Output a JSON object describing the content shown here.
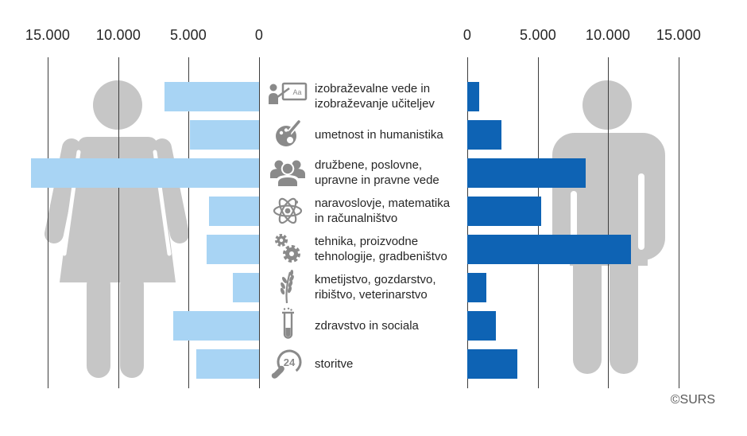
{
  "source": "©SURS",
  "colors": {
    "female_bar": "#A8D4F4",
    "male_bar": "#0E63B4",
    "silhouette": "#C6C6C6",
    "icon": "#8A8A8A",
    "gridline": "#3D3D3D"
  },
  "chart_data": {
    "type": "bar",
    "variant": "population-pyramid",
    "axis": {
      "left_ticks": [
        "15.000",
        "10.000",
        "5.000",
        "0"
      ],
      "right_ticks": [
        "0",
        "5.000",
        "10.000",
        "15.000"
      ],
      "side_max": 15000,
      "tick_step": 5000,
      "grid": true,
      "legend": "none"
    },
    "categories": [
      "izobraževalne vede in izobraževanje učiteljev",
      "umetnost in humanistika",
      "družbene, poslovne, upravne in pravne vede",
      "naravoslovje, matematika in računalništvo",
      "tehnika, proizvodne tehnologije, gradbeništvo",
      "kmetijstvo, gozdarstvo, ribištvo, veterinarstvo",
      "zdravstvo in sociala",
      "storitve"
    ],
    "series": [
      {
        "name": "female-left-side",
        "color": "#A8D4F4",
        "values": [
          6700,
          4900,
          16200,
          3550,
          3700,
          1850,
          6100,
          4450
        ]
      },
      {
        "name": "male-right-side",
        "color": "#0E63B4",
        "values": [
          850,
          2400,
          8400,
          5250,
          11600,
          1350,
          2000,
          3550
        ]
      }
    ]
  },
  "rows": [
    {
      "icon": "teacher-board-icon",
      "line1": "izobraževalne vede in",
      "line2": "izobraževanje učiteljev"
    },
    {
      "icon": "palette-icon",
      "line1": "umetnost in humanistika",
      "line2": ""
    },
    {
      "icon": "people-group-icon",
      "line1": "družbene, poslovne,",
      "line2": "upravne in pravne vede"
    },
    {
      "icon": "atom-icon",
      "line1": "naravoslovje, matematika",
      "line2": "in računalništvo"
    },
    {
      "icon": "gears-icon",
      "line1": "tehnika, proizvodne",
      "line2": "tehnologije, gradbeništvo"
    },
    {
      "icon": "wheat-icon",
      "line1": "kmetijstvo, gozdarstvo,",
      "line2": "ribištvo, veterinarstvo"
    },
    {
      "icon": "test-tube-icon",
      "line1": "zdravstvo in sociala",
      "line2": ""
    },
    {
      "icon": "phone-24-icon",
      "line1": "storitve",
      "line2": ""
    }
  ]
}
